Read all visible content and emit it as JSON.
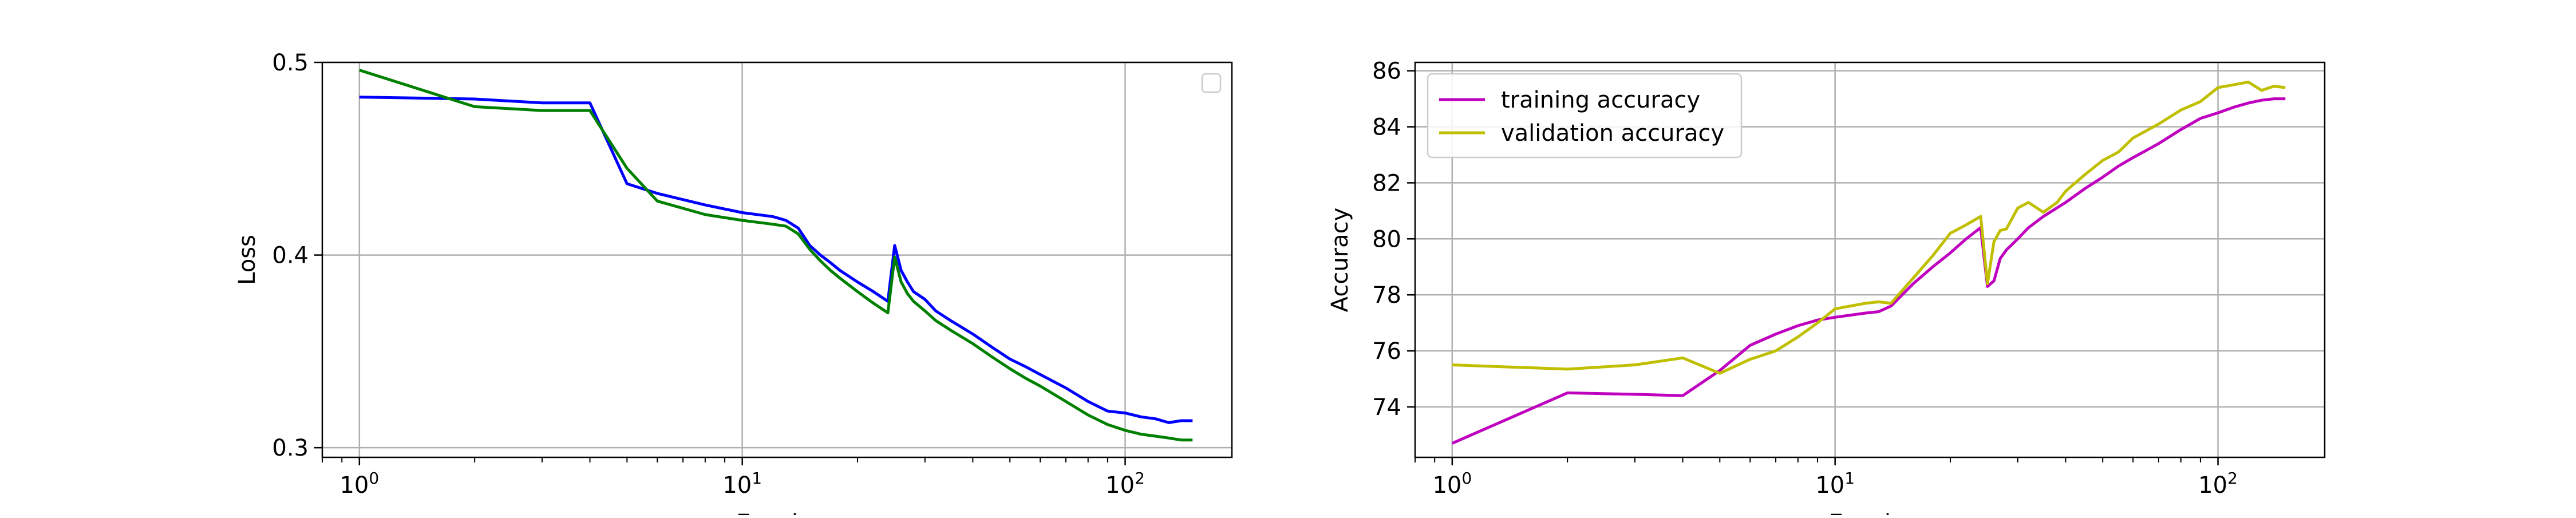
{
  "chart_data": [
    {
      "type": "line",
      "xscale": "log",
      "xlabel": "Epochs",
      "ylabel": "Loss",
      "xlim": [
        0.8,
        190
      ],
      "ylim": [
        0.295,
        0.5
      ],
      "xticks": [
        {
          "value": 1,
          "base": "10",
          "exp": "0"
        },
        {
          "value": 10,
          "base": "10",
          "exp": "1"
        },
        {
          "value": 100,
          "base": "10",
          "exp": "2"
        }
      ],
      "yticks": [
        {
          "value": 0.3,
          "label": "0.3"
        },
        {
          "value": 0.4,
          "label": "0.4"
        },
        {
          "value": 0.5,
          "label": "0.5"
        }
      ],
      "grid": true,
      "legend": {
        "position": "top-right",
        "entries": []
      },
      "series": [
        {
          "color": "#0000ff",
          "x": [
            1,
            2,
            3,
            4,
            5,
            6,
            8,
            10,
            12,
            13,
            14,
            15,
            16,
            17,
            18,
            20,
            22,
            24,
            25,
            26,
            27,
            28,
            30,
            32,
            35,
            40,
            45,
            50,
            55,
            60,
            70,
            80,
            90,
            100,
            110,
            120,
            130,
            140,
            150
          ],
          "y": [
            0.482,
            0.481,
            0.479,
            0.479,
            0.437,
            0.432,
            0.426,
            0.422,
            0.42,
            0.418,
            0.414,
            0.405,
            0.4,
            0.396,
            0.392,
            0.386,
            0.381,
            0.376,
            0.405,
            0.392,
            0.386,
            0.381,
            0.377,
            0.371,
            0.366,
            0.359,
            0.352,
            0.346,
            0.342,
            0.338,
            0.331,
            0.324,
            0.319,
            0.318,
            0.316,
            0.315,
            0.313,
            0.314,
            0.314
          ]
        },
        {
          "color": "#008000",
          "x": [
            1,
            2,
            3,
            4,
            5,
            6,
            8,
            10,
            12,
            13,
            14,
            15,
            16,
            17,
            18,
            20,
            22,
            24,
            25,
            26,
            27,
            28,
            30,
            32,
            35,
            40,
            45,
            50,
            55,
            60,
            70,
            80,
            90,
            100,
            110,
            120,
            130,
            140,
            150
          ],
          "y": [
            0.496,
            0.477,
            0.475,
            0.475,
            0.445,
            0.428,
            0.421,
            0.418,
            0.416,
            0.415,
            0.411,
            0.403,
            0.397,
            0.392,
            0.388,
            0.381,
            0.375,
            0.37,
            0.399,
            0.386,
            0.38,
            0.376,
            0.371,
            0.366,
            0.361,
            0.354,
            0.347,
            0.341,
            0.336,
            0.332,
            0.324,
            0.317,
            0.312,
            0.309,
            0.307,
            0.306,
            0.305,
            0.304,
            0.304
          ]
        }
      ]
    },
    {
      "type": "line",
      "xscale": "log",
      "xlabel": "Epochs",
      "ylabel": "Accuracy",
      "xlim": [
        0.8,
        190
      ],
      "ylim": [
        72.2,
        86.3
      ],
      "xticks": [
        {
          "value": 1,
          "base": "10",
          "exp": "0"
        },
        {
          "value": 10,
          "base": "10",
          "exp": "1"
        },
        {
          "value": 100,
          "base": "10",
          "exp": "2"
        }
      ],
      "yticks": [
        {
          "value": 74,
          "label": "74"
        },
        {
          "value": 76,
          "label": "76"
        },
        {
          "value": 78,
          "label": "78"
        },
        {
          "value": 80,
          "label": "80"
        },
        {
          "value": 82,
          "label": "82"
        },
        {
          "value": 84,
          "label": "84"
        },
        {
          "value": 86,
          "label": "86"
        }
      ],
      "grid": true,
      "legend": {
        "position": "top-left",
        "entries": [
          "training accuracy",
          "validation accuracy"
        ]
      },
      "series": [
        {
          "name": "training accuracy",
          "color": "#bf00bf",
          "x": [
            1,
            2,
            3,
            4,
            5,
            6,
            7,
            8,
            9,
            10,
            12,
            13,
            14,
            16,
            18,
            20,
            22,
            24,
            25,
            26,
            27,
            28,
            30,
            32,
            35,
            40,
            45,
            50,
            55,
            60,
            70,
            80,
            90,
            100,
            110,
            120,
            130,
            140,
            150
          ],
          "y": [
            72.7,
            74.5,
            74.45,
            74.4,
            75.3,
            76.2,
            76.6,
            76.9,
            77.1,
            77.2,
            77.35,
            77.4,
            77.6,
            78.4,
            79.0,
            79.5,
            80.0,
            80.4,
            78.3,
            78.5,
            79.3,
            79.6,
            80.0,
            80.4,
            80.8,
            81.3,
            81.8,
            82.2,
            82.6,
            82.9,
            83.4,
            83.9,
            84.3,
            84.5,
            84.7,
            84.85,
            84.95,
            85.0,
            85.0
          ]
        },
        {
          "name": "validation accuracy",
          "color": "#bfbf00",
          "x": [
            1,
            2,
            3,
            4,
            5,
            6,
            7,
            8,
            9,
            10,
            12,
            13,
            14,
            16,
            18,
            20,
            22,
            24,
            25,
            26,
            27,
            28,
            30,
            32,
            35,
            38,
            40,
            45,
            50,
            55,
            60,
            70,
            80,
            90,
            100,
            110,
            120,
            130,
            140,
            150
          ],
          "y": [
            75.5,
            75.35,
            75.5,
            75.75,
            75.2,
            75.7,
            76.0,
            76.5,
            77.0,
            77.5,
            77.7,
            77.75,
            77.7,
            78.6,
            79.4,
            80.2,
            80.5,
            80.8,
            78.4,
            79.9,
            80.3,
            80.35,
            81.1,
            81.3,
            80.95,
            81.3,
            81.7,
            82.3,
            82.8,
            83.1,
            83.6,
            84.1,
            84.6,
            84.9,
            85.4,
            85.5,
            85.6,
            85.3,
            85.45,
            85.4
          ]
        }
      ]
    }
  ]
}
